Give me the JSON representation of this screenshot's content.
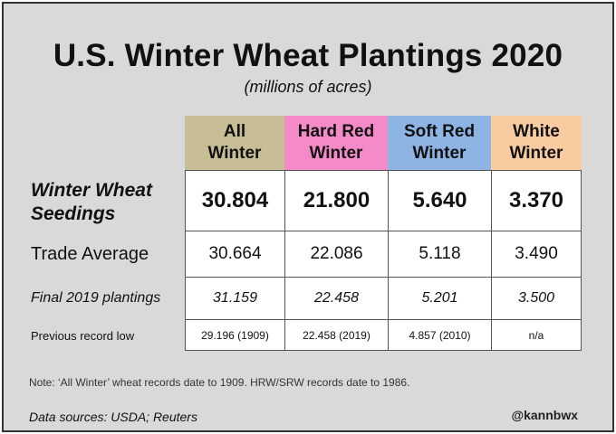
{
  "title": "U.S. Winter Wheat Plantings 2020",
  "subtitle": "(millions of acres)",
  "columns": [
    {
      "line1": "All",
      "line2": "Winter",
      "color": "#c8be96"
    },
    {
      "line1": "Hard Red",
      "line2": "Winter",
      "color": "#f58ac8"
    },
    {
      "line1": "Soft Red",
      "line2": "Winter",
      "color": "#8eb4e3"
    },
    {
      "line1": "White",
      "line2": "Winter",
      "color": "#f9cba1"
    }
  ],
  "rows": [
    {
      "label_line1": "Winter Wheat",
      "label_line2": "Seedings",
      "values": [
        "30.804",
        "21.800",
        "5.640",
        "3.370"
      ]
    },
    {
      "label": "Trade Average",
      "values": [
        "30.664",
        "22.086",
        "5.118",
        "3.490"
      ]
    },
    {
      "label": "Final 2019 plantings",
      "values": [
        "31.159",
        "22.458",
        "5.201",
        "3.500"
      ]
    },
    {
      "label": "Previous record low",
      "values": [
        "29.196 (1909)",
        "22.458 (2019)",
        "4.857 (2010)",
        "n/a"
      ]
    }
  ],
  "note": "Note: ‘All Winter’ wheat records date to 1909. HRW/SRW records date to 1986.",
  "source": "Data sources: USDA; Reuters",
  "handle": "@kannbwx"
}
